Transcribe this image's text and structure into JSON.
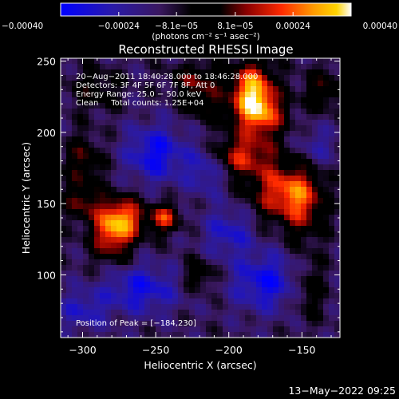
{
  "chart_data": {
    "type": "heatmap",
    "title": "Reconstructed RHESSI Image",
    "xlabel": "Heliocentric X (arcsec)",
    "ylabel": "Heliocentric Y (arcsec)",
    "xlim": [
      -315,
      -124
    ],
    "ylim": [
      56,
      252
    ],
    "x_ticks": [
      -300,
      -250,
      -200,
      -150
    ],
    "y_ticks": [
      100,
      150,
      200,
      250
    ],
    "x_tick_labels": [
      "−300",
      "−250",
      "−200",
      "−150"
    ],
    "y_tick_labels": [
      "100",
      "150",
      "200",
      "250"
    ],
    "grid": false,
    "colorbar": {
      "range": [
        -0.0004,
        0.0004
      ],
      "ticks": [
        -0.0004,
        -0.00024,
        -8.1e-05,
        8.1e-05,
        0.00024,
        0.0004
      ],
      "tick_labels": [
        "−0.00040",
        "−0.00024",
        "−8.1e−05",
        "8.1e−05",
        "0.00024",
        "0.00040"
      ],
      "label": "(photons cm⁻² s⁻¹ asec⁻²)",
      "colors": [
        "#0000ff",
        "#2a1aa8",
        "#3a1860",
        "#000000",
        "#8a0000",
        "#ff2a00",
        "#ff9a00",
        "#ffd400",
        "#ffffff"
      ]
    },
    "sources": [
      {
        "x": -184,
        "y": 230,
        "intensity": 0.0004,
        "sx": 10,
        "sy": 14
      },
      {
        "x": -178,
        "y": 212,
        "intensity": 0.00031,
        "sx": 12,
        "sy": 12
      },
      {
        "x": -192,
        "y": 183,
        "intensity": 0.00028,
        "sx": 16,
        "sy": 10
      },
      {
        "x": -165,
        "y": 158,
        "intensity": 0.0003,
        "sx": 14,
        "sy": 14
      },
      {
        "x": -148,
        "y": 150,
        "intensity": 0.00022,
        "sx": 10,
        "sy": 18
      },
      {
        "x": -222,
        "y": 236,
        "intensity": 0.0002,
        "sx": 12,
        "sy": 8
      },
      {
        "x": -215,
        "y": 218,
        "intensity": 0.00014,
        "sx": 10,
        "sy": 8
      },
      {
        "x": -280,
        "y": 130,
        "intensity": 0.00033,
        "sx": 10,
        "sy": 14
      },
      {
        "x": -270,
        "y": 140,
        "intensity": 0.00026,
        "sx": 10,
        "sy": 10
      },
      {
        "x": -300,
        "y": 152,
        "intensity": 0.0002,
        "sx": 9,
        "sy": 9
      },
      {
        "x": -244,
        "y": 140,
        "intensity": 0.0003,
        "sx": 7,
        "sy": 7
      },
      {
        "x": -300,
        "y": 180,
        "intensity": 0.00018,
        "sx": 9,
        "sy": 12
      },
      {
        "x": -292,
        "y": 230,
        "intensity": 0.00013,
        "sx": 12,
        "sy": 10
      },
      {
        "x": -220,
        "y": 100,
        "intensity": 0.00015,
        "sx": 8,
        "sy": 8
      },
      {
        "x": -145,
        "y": 90,
        "intensity": 0.00014,
        "sx": 8,
        "sy": 14
      },
      {
        "x": -135,
        "y": 230,
        "intensity": 0.00016,
        "sx": 10,
        "sy": 10
      },
      {
        "x": -250,
        "y": 185,
        "intensity": -0.00025,
        "sx": 14,
        "sy": 14
      },
      {
        "x": -215,
        "y": 175,
        "intensity": -0.0002,
        "sx": 10,
        "sy": 12
      },
      {
        "x": -260,
        "y": 90,
        "intensity": -0.00022,
        "sx": 18,
        "sy": 12
      },
      {
        "x": -175,
        "y": 95,
        "intensity": -0.00024,
        "sx": 16,
        "sy": 14
      },
      {
        "x": -200,
        "y": 130,
        "intensity": -0.00018,
        "sx": 12,
        "sy": 12
      },
      {
        "x": -300,
        "y": 75,
        "intensity": -0.00016,
        "sx": 12,
        "sy": 10
      },
      {
        "x": -140,
        "y": 190,
        "intensity": -0.00012,
        "sx": 10,
        "sy": 10
      }
    ],
    "info_lines": [
      "20−Aug−2011 18:40:28.000 to 18:46:28.000",
      "Detectors: 3F 4F 5F 6F 7F 8F, Att 0",
      "Energy Range: 25.0 − 50.0 keV",
      "Clean     Total counts: 1.25E+04"
    ],
    "peak_label": "Position of Peak = [−184,230]",
    "timestamp": "13−May−2022 09:25"
  }
}
